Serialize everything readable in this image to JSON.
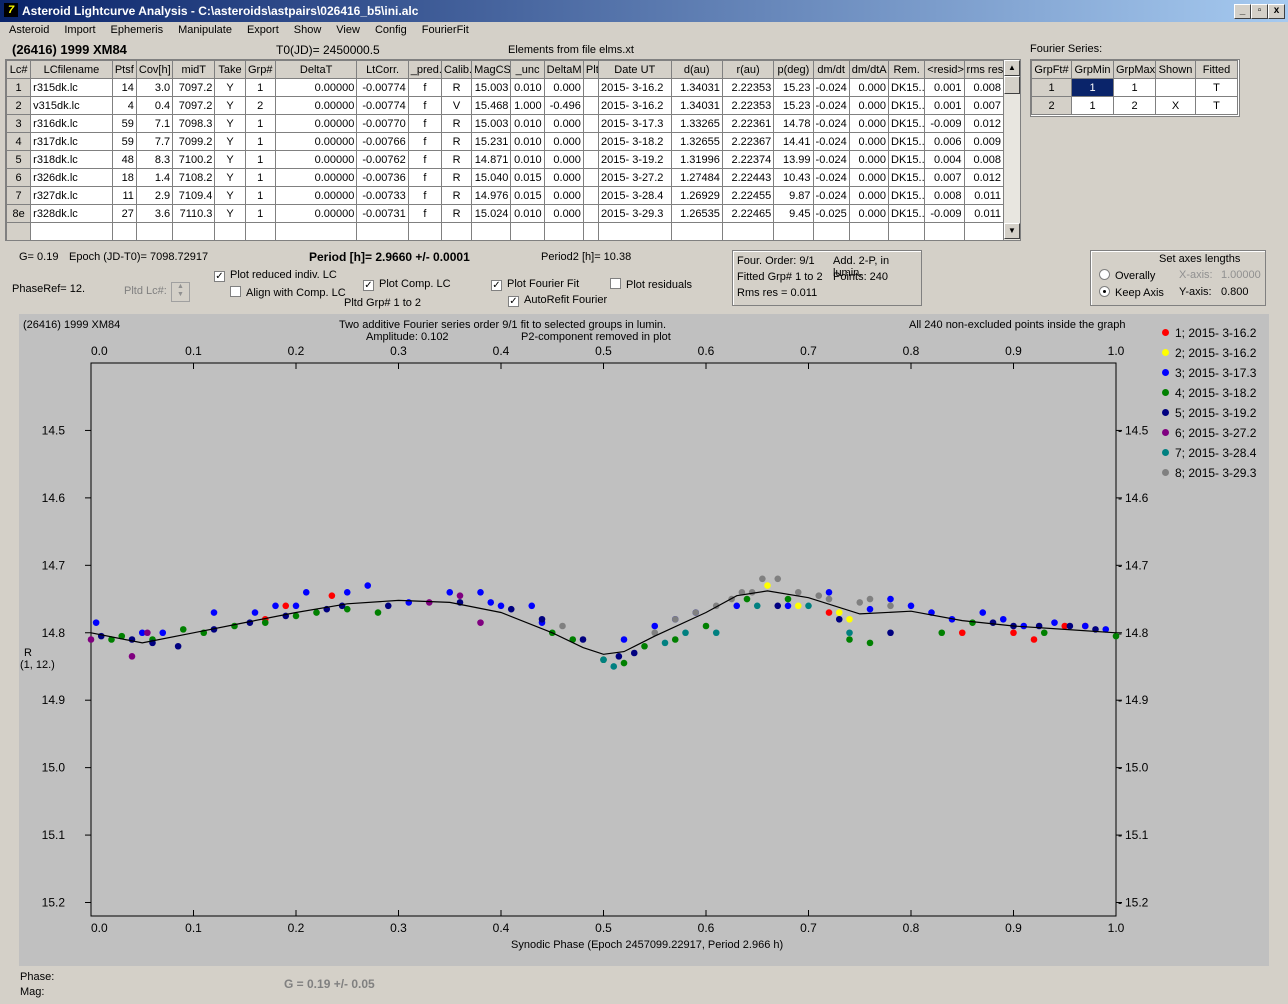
{
  "window": {
    "title": "Asteroid Lightcurve Analysis - C:\\asteroids\\astpairs\\026416_b5\\ini.alc",
    "controls": [
      "_",
      "▫",
      "x"
    ]
  },
  "menu": [
    "Asteroid",
    "Import",
    "Ephemeris",
    "Manipulate",
    "Export",
    "Show",
    "View",
    "Config",
    "FourierFit"
  ],
  "header": {
    "asteroid": "(26416) 1999 XM84",
    "t0": "T0(JD)= 2450000.5",
    "elements": "Elements from file elms.xt",
    "fourier_label": "Fourier Series:"
  },
  "table": {
    "columns": [
      "Lc#",
      "LCfilename",
      "Ptsf",
      "Cov[h]",
      "midT",
      "Take",
      "Grp#",
      "DeltaT",
      "LtCorr.",
      "_pred.",
      "Calib.",
      "MagCS",
      "_unc",
      "DeltaM",
      "Plt",
      "Date UT",
      "d(au)",
      "r(au)",
      "p(deg)",
      "dm/dt",
      "dm/dtA",
      "Rem.",
      "<resid>",
      "rms res"
    ],
    "rows": [
      [
        "1",
        "r315dk.lc",
        "14",
        "3.0",
        "7097.2",
        "Y",
        "1",
        "0.00000",
        "-0.00774",
        "f",
        "R",
        "15.003",
        "0.010",
        "0.000",
        "",
        "2015- 3-16.2",
        "1.34031",
        "2.22353",
        "15.23",
        "-0.024",
        "0.000",
        "DK15..",
        "0.001",
        "0.008"
      ],
      [
        "2",
        "v315dk.lc",
        "4",
        "0.4",
        "7097.2",
        "Y",
        "2",
        "0.00000",
        "-0.00774",
        "f",
        "V",
        "15.468",
        "1.000",
        "-0.496",
        "",
        "2015- 3-16.2",
        "1.34031",
        "2.22353",
        "15.23",
        "-0.024",
        "0.000",
        "DK15..",
        "0.001",
        "0.007"
      ],
      [
        "3",
        "r316dk.lc",
        "59",
        "7.1",
        "7098.3",
        "Y",
        "1",
        "0.00000",
        "-0.00770",
        "f",
        "R",
        "15.003",
        "0.010",
        "0.000",
        "",
        "2015- 3-17.3",
        "1.33265",
        "2.22361",
        "14.78",
        "-0.024",
        "0.000",
        "DK15..",
        "-0.009",
        "0.012"
      ],
      [
        "4",
        "r317dk.lc",
        "59",
        "7.7",
        "7099.2",
        "Y",
        "1",
        "0.00000",
        "-0.00766",
        "f",
        "R",
        "15.231",
        "0.010",
        "0.000",
        "",
        "2015- 3-18.2",
        "1.32655",
        "2.22367",
        "14.41",
        "-0.024",
        "0.000",
        "DK15..",
        "0.006",
        "0.009"
      ],
      [
        "5",
        "r318dk.lc",
        "48",
        "8.3",
        "7100.2",
        "Y",
        "1",
        "0.00000",
        "-0.00762",
        "f",
        "R",
        "14.871",
        "0.010",
        "0.000",
        "",
        "2015- 3-19.2",
        "1.31996",
        "2.22374",
        "13.99",
        "-0.024",
        "0.000",
        "DK15..",
        "0.004",
        "0.008"
      ],
      [
        "6",
        "r326dk.lc",
        "18",
        "1.4",
        "7108.2",
        "Y",
        "1",
        "0.00000",
        "-0.00736",
        "f",
        "R",
        "15.040",
        "0.015",
        "0.000",
        "",
        "2015- 3-27.2",
        "1.27484",
        "2.22443",
        "10.43",
        "-0.024",
        "0.000",
        "DK15..",
        "0.007",
        "0.012"
      ],
      [
        "7",
        "r327dk.lc",
        "11",
        "2.9",
        "7109.4",
        "Y",
        "1",
        "0.00000",
        "-0.00733",
        "f",
        "R",
        "14.976",
        "0.015",
        "0.000",
        "",
        "2015- 3-28.4",
        "1.26929",
        "2.22455",
        "9.87",
        "-0.024",
        "0.000",
        "DK15..",
        "0.008",
        "0.011"
      ],
      [
        "8e",
        "r328dk.lc",
        "27",
        "3.6",
        "7110.3",
        "Y",
        "1",
        "0.00000",
        "-0.00731",
        "f",
        "R",
        "15.024",
        "0.010",
        "0.000",
        "",
        "2015- 3-29.3",
        "1.26535",
        "2.22465",
        "9.45",
        "-0.025",
        "0.000",
        "DK15..",
        "-0.009",
        "0.011"
      ]
    ]
  },
  "fourier_table": {
    "columns": [
      "GrpFt#",
      "GrpMin",
      "GrpMax",
      "Shown",
      "Fitted"
    ],
    "rows": [
      [
        "1",
        "1",
        "1",
        "",
        "T"
      ],
      [
        "2",
        "1",
        "2",
        "X",
        "T"
      ]
    ]
  },
  "controls": {
    "g": "G= 0.19",
    "epoch": "Epoch (JD-T0)= 7098.72917",
    "period": "Period [h]= 2.9660 +/- 0.0001",
    "period2": "Period2 [h]= 10.38",
    "phaseref": "PhaseRef= 12.",
    "pltd_lc": "Pltd Lc#:",
    "pltd_grp": "Pltd Grp#  1   to   2",
    "cb_reduced": "Plot reduced indiv. LC",
    "cb_align": "Align with Comp. LC",
    "cb_comp": "Plot Comp. LC",
    "cb_fourier": "Plot Fourier Fit",
    "cb_autorefit": "AutoRefit Fourier",
    "cb_residuals": "Plot residuals",
    "four_order": "Four. Order:  9/1",
    "add2p": "Add. 2-P, in lumin.",
    "fitted_grp": "Fitted Grp# 1 to 2",
    "points": "Points: 240",
    "rms": "Rms res     = 0.011",
    "axes_title": "Set axes lengths",
    "overally": "Overally",
    "keepaxis": "Keep Axis",
    "xaxis": "X-axis:",
    "xaxis_val": "1.00000",
    "yaxis": "Y-axis:",
    "yaxis_val": "0.800"
  },
  "plot": {
    "top_left": "(26416) 1999 XM84",
    "title1": "Two additive Fourier series order 9/1 fit to selected groups in lumin.",
    "amplitude": "Amplitude: 0.102",
    "p2": "P2-component removed in plot",
    "top_right": "All 240 non-excluded points inside the graph",
    "ylabel": "R",
    "ylabel2": "(1, 12.)",
    "xlabel": "Synodic Phase (Epoch 2457099.22917, Period 2.966 h)"
  },
  "chart_data": {
    "type": "scatter",
    "xlim": [
      0,
      1
    ],
    "ylim": [
      14.4,
      15.22
    ],
    "y_inverted": true,
    "x_ticks": [
      "0.0",
      "0.1",
      "0.2",
      "0.3",
      "0.4",
      "0.5",
      "0.6",
      "0.7",
      "0.8",
      "0.9",
      "1.0"
    ],
    "y_ticks": [
      "14.5",
      "14.6",
      "14.7",
      "14.8",
      "14.9",
      "15.0",
      "15.1",
      "15.2"
    ],
    "fit_curve": {
      "x": [
        0,
        0.05,
        0.1,
        0.15,
        0.2,
        0.25,
        0.3,
        0.35,
        0.4,
        0.45,
        0.48,
        0.5,
        0.52,
        0.55,
        0.6,
        0.63,
        0.66,
        0.7,
        0.75,
        0.8,
        0.85,
        0.9,
        0.95,
        1.0
      ],
      "y": [
        14.8,
        14.815,
        14.8,
        14.785,
        14.77,
        14.757,
        14.752,
        14.755,
        14.77,
        14.8,
        14.822,
        14.832,
        14.828,
        14.805,
        14.77,
        14.745,
        14.738,
        14.748,
        14.772,
        14.768,
        14.782,
        14.79,
        14.795,
        14.8
      ]
    },
    "series": [
      {
        "name": "1; 2015- 3-16.2",
        "color": "#ff0000",
        "x": [
          0.17,
          0.19,
          0.235,
          0.72,
          0.85,
          0.9,
          0.92,
          0.95,
          0.97
        ],
        "y": [
          14.78,
          14.76,
          14.745,
          14.77,
          14.8,
          14.8,
          14.81,
          14.79,
          14.79
        ]
      },
      {
        "name": "2; 2015- 3-16.2",
        "color": "#ffff00",
        "x": [
          0.66,
          0.69,
          0.73,
          0.74
        ],
        "y": [
          14.73,
          14.76,
          14.77,
          14.78
        ]
      },
      {
        "name": "3; 2015- 3-17.3",
        "color": "#0000ff",
        "x": [
          0.005,
          0.05,
          0.07,
          0.12,
          0.16,
          0.18,
          0.2,
          0.21,
          0.25,
          0.27,
          0.31,
          0.35,
          0.38,
          0.39,
          0.4,
          0.43,
          0.44,
          0.52,
          0.55,
          0.57,
          0.59,
          0.63,
          0.68,
          0.72,
          0.76,
          0.78,
          0.8,
          0.82,
          0.84,
          0.87,
          0.89,
          0.91,
          0.94,
          0.97,
          0.99
        ],
        "y": [
          14.785,
          14.8,
          14.8,
          14.77,
          14.77,
          14.76,
          14.76,
          14.74,
          14.74,
          14.73,
          14.755,
          14.74,
          14.74,
          14.755,
          14.76,
          14.76,
          14.785,
          14.81,
          14.79,
          14.78,
          14.77,
          14.76,
          14.76,
          14.74,
          14.765,
          14.75,
          14.76,
          14.77,
          14.78,
          14.77,
          14.78,
          14.79,
          14.785,
          14.79,
          14.795
        ]
      },
      {
        "name": "4; 2015- 3-18.2",
        "color": "#008000",
        "x": [
          0.02,
          0.03,
          0.06,
          0.09,
          0.11,
          0.14,
          0.17,
          0.2,
          0.22,
          0.25,
          0.28,
          0.45,
          0.47,
          0.5,
          0.52,
          0.54,
          0.57,
          0.6,
          0.64,
          0.68,
          0.74,
          0.76,
          0.83,
          0.86,
          0.93,
          1.0
        ],
        "y": [
          14.81,
          14.805,
          14.81,
          14.795,
          14.8,
          14.79,
          14.785,
          14.775,
          14.77,
          14.765,
          14.77,
          14.8,
          14.81,
          14.84,
          14.845,
          14.82,
          14.81,
          14.79,
          14.75,
          14.75,
          14.81,
          14.815,
          14.8,
          14.785,
          14.8,
          14.805
        ]
      },
      {
        "name": "5; 2015- 3-19.2",
        "color": "#000080",
        "x": [
          0.01,
          0.04,
          0.06,
          0.085,
          0.12,
          0.155,
          0.19,
          0.23,
          0.245,
          0.29,
          0.36,
          0.41,
          0.44,
          0.48,
          0.515,
          0.53,
          0.67,
          0.73,
          0.78,
          0.88,
          0.9,
          0.925,
          0.955,
          0.98
        ],
        "y": [
          14.805,
          14.81,
          14.815,
          14.82,
          14.795,
          14.785,
          14.775,
          14.765,
          14.76,
          14.76,
          14.755,
          14.765,
          14.78,
          14.81,
          14.835,
          14.83,
          14.76,
          14.78,
          14.8,
          14.785,
          14.79,
          14.79,
          14.79,
          14.795
        ]
      },
      {
        "name": "6; 2015- 3-27.2",
        "color": "#800080",
        "x": [
          0.0,
          0.04,
          0.055,
          0.33,
          0.36,
          0.38
        ],
        "y": [
          14.81,
          14.835,
          14.8,
          14.755,
          14.745,
          14.785
        ]
      },
      {
        "name": "7; 2015- 3-28.4",
        "color": "#008080",
        "x": [
          0.5,
          0.51,
          0.56,
          0.58,
          0.61,
          0.65,
          0.7,
          0.74
        ],
        "y": [
          14.84,
          14.85,
          14.815,
          14.8,
          14.8,
          14.76,
          14.76,
          14.8
        ]
      },
      {
        "name": "8; 2015- 3-29.3",
        "color": "#808080",
        "x": [
          0.46,
          0.55,
          0.57,
          0.59,
          0.61,
          0.625,
          0.635,
          0.645,
          0.655,
          0.67,
          0.69,
          0.71,
          0.72,
          0.75,
          0.76,
          0.78
        ],
        "y": [
          14.79,
          14.8,
          14.78,
          14.77,
          14.76,
          14.75,
          14.74,
          14.74,
          14.72,
          14.72,
          14.74,
          14.745,
          14.75,
          14.755,
          14.75,
          14.76
        ]
      }
    ]
  },
  "footer": {
    "phase": "Phase:",
    "mag": "Mag:",
    "g_fit": "G = 0.19 +/- 0.05"
  }
}
